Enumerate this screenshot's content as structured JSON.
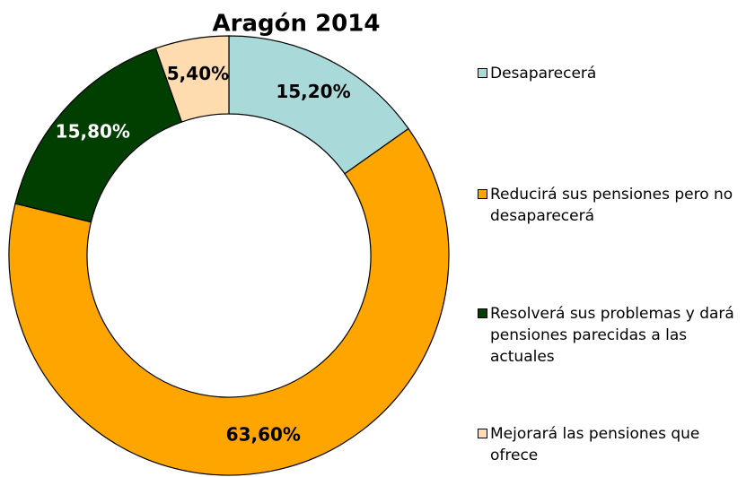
{
  "chart_data": {
    "type": "donut",
    "title": "Aragón 2014",
    "categories": [
      "Desaparecerá",
      "Reducirá sus pensiones pero no desaparecerá",
      "Resolverá sus problemas y dará pensiones parecidas a las actuales",
      "Mejorará las pensiones que ofrece"
    ],
    "values": [
      15.2,
      63.6,
      15.8,
      5.4
    ],
    "value_labels": [
      "15,20%",
      "63,60%",
      "15,80%",
      "5,40%"
    ],
    "colors": [
      "#a9d9d9",
      "#ffa500",
      "#003f00",
      "#ffdbb0"
    ],
    "legend": "right"
  }
}
